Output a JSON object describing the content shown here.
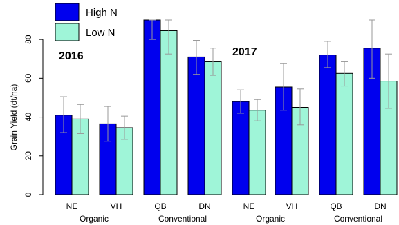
{
  "chart_data": {
    "type": "bar",
    "ylabel": "Grain Yield (dt/ha)",
    "ylim": [
      0,
      90
    ],
    "yticks": [
      0,
      20,
      40,
      60,
      80
    ],
    "categories": [
      "NE",
      "VH",
      "QB",
      "DN",
      "NE",
      "VH",
      "QB",
      "DN"
    ],
    "groups": [
      {
        "label": "Organic",
        "categories": [
          0,
          1
        ]
      },
      {
        "label": "Conventional",
        "categories": [
          2,
          3
        ]
      },
      {
        "label": "Organic",
        "categories": [
          4,
          5
        ]
      },
      {
        "label": "Conventional",
        "categories": [
          6,
          7
        ]
      }
    ],
    "annotations": [
      {
        "text": "2016",
        "year_block": 0
      },
      {
        "text": "2017",
        "year_block": 1
      }
    ],
    "series": [
      {
        "name": "High N",
        "color": "#0000ee",
        "values": [
          41,
          36.5,
          90,
          71,
          48,
          55.5,
          72,
          75.5
        ],
        "error_low": [
          32,
          27.5,
          80,
          62,
          42,
          43.5,
          65.5,
          60
        ],
        "error_high": [
          50.5,
          45.5,
          90,
          79.5,
          54,
          67.5,
          79,
          90
        ]
      },
      {
        "name": "Low N",
        "color": "#9ff5d8",
        "values": [
          39,
          34.5,
          84.5,
          68.5,
          43.5,
          45,
          62.5,
          58.5
        ],
        "error_low": [
          31.5,
          28.5,
          72.5,
          61.5,
          38,
          36,
          56,
          44.5
        ],
        "error_high": [
          46.5,
          40.5,
          90,
          75.5,
          49,
          54.5,
          68.5,
          72.5
        ]
      }
    ],
    "legend": {
      "position": "top-left"
    },
    "grid": false
  }
}
